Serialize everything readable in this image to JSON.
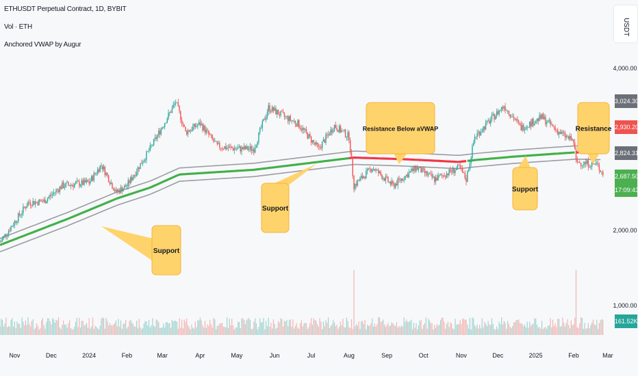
{
  "header": {
    "symbol_line": "ETHUSDT Perpetual Contract, 1D, BYBIT",
    "volume_line": "Vol · ETH",
    "indicator_line": "Anchored VWAP by Augur"
  },
  "axis": {
    "currency": "USDT",
    "price_ticks": [
      "4,000.00",
      "2,000.00",
      "1,000.00"
    ],
    "time_ticks": [
      "Nov",
      "Dec",
      "2024",
      "Feb",
      "Mar",
      "Apr",
      "May",
      "Jun",
      "Jul",
      "Aug",
      "Sep",
      "Oct",
      "Nov",
      "Dec",
      "2025",
      "Feb",
      "Mar"
    ]
  },
  "price_tags": [
    {
      "label": "3,024.30",
      "color": "#6b6f78"
    },
    {
      "label": "2,930.20",
      "color": "#ef5350"
    },
    {
      "label": "2,824.31",
      "color": "#6b6f78"
    },
    {
      "label": "2,687.50",
      "color": "#4caf50"
    },
    {
      "label": "17:09:43",
      "color": "#4caf50"
    },
    {
      "label": "161.52K",
      "color": "#26a69a"
    }
  ],
  "callouts": [
    {
      "text": "Support"
    },
    {
      "text": "Support"
    },
    {
      "text": "Resistance Below aVWAP"
    },
    {
      "text": "Support"
    },
    {
      "text": "Resistance"
    }
  ],
  "colors": {
    "up": "#26a69a",
    "down": "#ef5350",
    "vwap_support": "#43b04a",
    "vwap_resistance": "#f23645",
    "band": "#9a9ca3",
    "callout_fill": "#ffd36b",
    "callout_border": "#f0b43a"
  },
  "chart_data": {
    "type": "candlestick",
    "title": "ETHUSDT Perpetual Contract, 1D, BYBIT",
    "ylabel": "USDT",
    "x_range": [
      "2023-10-20",
      "2025-03-05"
    ],
    "y_scale": "log",
    "ylim": [
      1300,
      5200
    ],
    "close_path": [
      [
        "2023-10-20",
        1570
      ],
      [
        "2023-11-01",
        1800
      ],
      [
        "2023-11-12",
        2050
      ],
      [
        "2023-11-25",
        2070
      ],
      [
        "2023-12-10",
        2300
      ],
      [
        "2024-01-01",
        2350
      ],
      [
        "2024-01-11",
        2650
      ],
      [
        "2024-01-23",
        2200
      ],
      [
        "2024-02-01",
        2300
      ],
      [
        "2024-02-20",
        2950
      ],
      [
        "2024-03-12",
        4050
      ],
      [
        "2024-03-20",
        3300
      ],
      [
        "2024-04-01",
        3500
      ],
      [
        "2024-04-15",
        3000
      ],
      [
        "2024-05-01",
        2950
      ],
      [
        "2024-05-15",
        2950
      ],
      [
        "2024-05-27",
        3900
      ],
      [
        "2024-06-10",
        3650
      ],
      [
        "2024-06-20",
        3500
      ],
      [
        "2024-07-07",
        2950
      ],
      [
        "2024-07-20",
        3450
      ],
      [
        "2024-08-01",
        3200
      ],
      [
        "2024-08-05",
        2300
      ],
      [
        "2024-08-20",
        2600
      ],
      [
        "2024-09-06",
        2300
      ],
      [
        "2024-09-25",
        2600
      ],
      [
        "2024-10-10",
        2400
      ],
      [
        "2024-10-30",
        2600
      ],
      [
        "2024-11-05",
        2400
      ],
      [
        "2024-11-12",
        3200
      ],
      [
        "2024-12-06",
        3950
      ],
      [
        "2024-12-20",
        3400
      ],
      [
        "2025-01-06",
        3650
      ],
      [
        "2025-01-20",
        3300
      ],
      [
        "2025-02-01",
        3100
      ],
      [
        "2025-02-03",
        2700
      ],
      [
        "2025-02-20",
        2650
      ],
      [
        "2025-02-25",
        2500
      ]
    ],
    "anchored_vwap": [
      [
        "2023-10-20",
        1540
      ],
      [
        "2023-12-15",
        1840
      ],
      [
        "2024-01-24",
        2110
      ],
      [
        "2024-02-20",
        2270
      ],
      [
        "2024-03-15",
        2480
      ],
      [
        "2024-05-15",
        2560
      ],
      [
        "2024-07-07",
        2700
      ],
      [
        "2024-08-05",
        2780
      ],
      [
        "2024-09-15",
        2750
      ],
      [
        "2024-10-30",
        2700
      ],
      [
        "2024-11-15",
        2740
      ],
      [
        "2024-12-15",
        2800
      ],
      [
        "2025-01-15",
        2850
      ],
      [
        "2025-02-03",
        2880
      ],
      [
        "2025-02-25",
        2870
      ]
    ],
    "volume_peaks": [
      {
        "date": "2024-08-05",
        "volume_k": 1100
      },
      {
        "date": "2025-02-03",
        "volume_k": 1150
      }
    ],
    "last_volume": "161.52K"
  }
}
